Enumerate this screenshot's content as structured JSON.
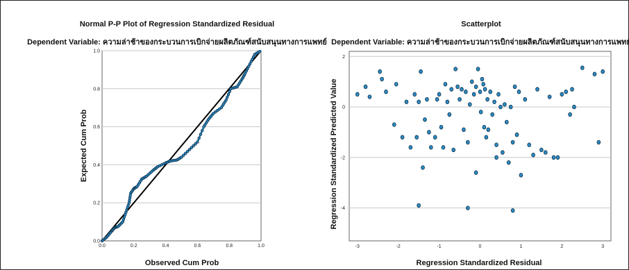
{
  "chart_data": [
    {
      "type": "line",
      "title": "Normal P-P Plot of Regression Standardized Residual",
      "subtitle": "Dependent Variable: ความล่าช้าของกระบวนการเบิกจ่ายผลิตภัณฑ์สนับสนุนทางการแพทย์",
      "xlabel": "Observed Cum Prob",
      "ylabel": "Expected Cum Prob",
      "xlim": [
        0,
        1
      ],
      "ylim": [
        0,
        1
      ],
      "xticks": [
        "0.0",
        "0.2",
        "0.4",
        "0.6",
        "0.8",
        "1.0"
      ],
      "yticks": [
        "0.0",
        "0.2",
        "0.4",
        "0.6",
        "0.8",
        "1.0"
      ],
      "grid": true,
      "reference_line": [
        [
          0,
          0
        ],
        [
          1,
          1
        ]
      ],
      "curve": [
        [
          0.0,
          0.0
        ],
        [
          0.03,
          0.02
        ],
        [
          0.06,
          0.05
        ],
        [
          0.08,
          0.07
        ],
        [
          0.1,
          0.075
        ],
        [
          0.13,
          0.1
        ],
        [
          0.15,
          0.15
        ],
        [
          0.17,
          0.2
        ],
        [
          0.18,
          0.25
        ],
        [
          0.2,
          0.275
        ],
        [
          0.22,
          0.285
        ],
        [
          0.25,
          0.325
        ],
        [
          0.28,
          0.34
        ],
        [
          0.32,
          0.37
        ],
        [
          0.35,
          0.39
        ],
        [
          0.4,
          0.41
        ],
        [
          0.43,
          0.42
        ],
        [
          0.47,
          0.425
        ],
        [
          0.5,
          0.44
        ],
        [
          0.55,
          0.48
        ],
        [
          0.6,
          0.52
        ],
        [
          0.64,
          0.6
        ],
        [
          0.67,
          0.64
        ],
        [
          0.7,
          0.67
        ],
        [
          0.75,
          0.7
        ],
        [
          0.78,
          0.74
        ],
        [
          0.81,
          0.8
        ],
        [
          0.85,
          0.81
        ],
        [
          0.88,
          0.85
        ],
        [
          0.9,
          0.88
        ],
        [
          0.93,
          0.93
        ],
        [
          0.96,
          0.98
        ],
        [
          1.0,
          1.0
        ]
      ]
    },
    {
      "type": "scatter",
      "title": "Scatterplot",
      "subtitle": "Dependent Variable: ความล่าช้าของกระบวนการเบิกจ่ายผลิตภัณฑ์สนับสนุนทางการแพทย์",
      "xlabel": "Regression Standardized Residual",
      "ylabel": "Regression Standardized Predicted Value",
      "xlim": [
        -3.2,
        3.2
      ],
      "ylim": [
        -5.3,
        2.2
      ],
      "xticks": [
        "-3",
        "-2",
        "-1",
        "0",
        "1",
        "2",
        "3"
      ],
      "yticks": [
        "2",
        "0",
        "-2",
        "-4"
      ],
      "grid": true,
      "points": [
        [
          -3.0,
          0.5
        ],
        [
          -2.8,
          0.8
        ],
        [
          -2.7,
          0.4
        ],
        [
          -2.45,
          1.4
        ],
        [
          -2.4,
          1.1
        ],
        [
          -2.3,
          0.6
        ],
        [
          -2.1,
          -0.7
        ],
        [
          -2.05,
          0.9
        ],
        [
          -1.9,
          -1.2
        ],
        [
          -1.8,
          0.2
        ],
        [
          -1.7,
          -1.6
        ],
        [
          -1.6,
          0.5
        ],
        [
          -1.55,
          -1.2
        ],
        [
          -1.5,
          0.2
        ],
        [
          -1.45,
          1.4
        ],
        [
          -1.4,
          -2.4
        ],
        [
          -1.35,
          -0.5
        ],
        [
          -1.3,
          0.3
        ],
        [
          -1.25,
          -1.0
        ],
        [
          -1.2,
          -1.6
        ],
        [
          -1.1,
          -1.2
        ],
        [
          -1.05,
          0.3
        ],
        [
          -1.0,
          0.5
        ],
        [
          -0.95,
          -0.8
        ],
        [
          -0.9,
          -1.6
        ],
        [
          -0.85,
          0.9
        ],
        [
          -0.8,
          0.2
        ],
        [
          -0.75,
          -0.3
        ],
        [
          -0.7,
          0.7
        ],
        [
          -0.65,
          -1.7
        ],
        [
          -0.6,
          1.5
        ],
        [
          -0.55,
          0.8
        ],
        [
          -0.5,
          0.3
        ],
        [
          -0.45,
          0.7
        ],
        [
          -0.4,
          -0.9
        ],
        [
          -0.35,
          0.6
        ],
        [
          -0.3,
          -1.4
        ],
        [
          -0.25,
          0.1
        ],
        [
          -0.2,
          1.0
        ],
        [
          -0.15,
          0.5
        ],
        [
          -0.1,
          0.8
        ],
        [
          -0.05,
          1.5
        ],
        [
          0.0,
          0.6
        ],
        [
          0.02,
          -0.2
        ],
        [
          0.05,
          1.1
        ],
        [
          0.08,
          0.9
        ],
        [
          0.1,
          -0.8
        ],
        [
          0.12,
          0.7
        ],
        [
          0.15,
          -1.2
        ],
        [
          0.18,
          0.3
        ],
        [
          0.2,
          -0.9
        ],
        [
          0.25,
          0.6
        ],
        [
          0.3,
          -0.3
        ],
        [
          0.35,
          0.2
        ],
        [
          0.4,
          -1.5
        ],
        [
          0.45,
          0.5
        ],
        [
          0.5,
          0.0
        ],
        [
          0.55,
          -1.8
        ],
        [
          0.6,
          0.1
        ],
        [
          0.65,
          -0.6
        ],
        [
          0.7,
          -2.2
        ],
        [
          0.75,
          0.0
        ],
        [
          0.8,
          -1.4
        ],
        [
          0.85,
          0.8
        ],
        [
          0.9,
          -1.1
        ],
        [
          0.95,
          0.6
        ],
        [
          1.0,
          -2.7
        ],
        [
          1.1,
          0.3
        ],
        [
          1.2,
          -1.5
        ],
        [
          1.3,
          -1.9
        ],
        [
          1.4,
          0.7
        ],
        [
          1.5,
          -1.7
        ],
        [
          1.6,
          -1.8
        ],
        [
          1.7,
          0.4
        ],
        [
          1.8,
          -2.0
        ],
        [
          1.9,
          -2.0
        ],
        [
          2.0,
          0.5
        ],
        [
          2.1,
          0.6
        ],
        [
          2.2,
          -0.3
        ],
        [
          2.25,
          0.7
        ],
        [
          2.3,
          0.0
        ],
        [
          2.5,
          1.55
        ],
        [
          2.8,
          1.3
        ],
        [
          2.9,
          -1.4
        ],
        [
          3.0,
          1.4
        ],
        [
          -1.5,
          -3.9
        ],
        [
          -0.3,
          -4.0
        ],
        [
          0.8,
          -4.1
        ],
        [
          -0.1,
          -2.6
        ],
        [
          0.4,
          -2.0
        ]
      ]
    }
  ]
}
